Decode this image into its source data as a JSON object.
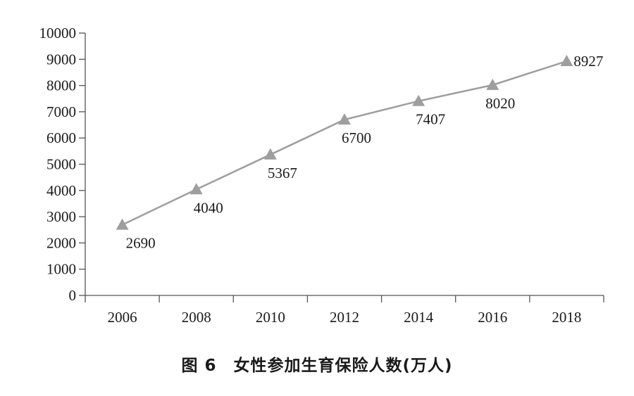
{
  "chart_data": {
    "type": "line",
    "title": "图 6　女性参加生育保险人数(万人)",
    "xlabel": "",
    "ylabel": "",
    "categories": [
      "2006",
      "2008",
      "2010",
      "2012",
      "2014",
      "2016",
      "2018"
    ],
    "series": [
      {
        "values": [
          2690,
          4040,
          5367,
          6700,
          7407,
          8020,
          8927
        ],
        "marker": "triangle",
        "color": "#9e9e9e"
      }
    ],
    "data_labels": [
      "2690",
      "4040",
      "5367",
      "6700",
      "7407",
      "8020",
      "8927"
    ],
    "ylim": [
      0,
      10000
    ],
    "yticks": [
      "0",
      "1000",
      "2000",
      "3000",
      "4000",
      "5000",
      "6000",
      "7000",
      "8000",
      "9000",
      "10000"
    ],
    "grid": false,
    "legend": "none"
  }
}
